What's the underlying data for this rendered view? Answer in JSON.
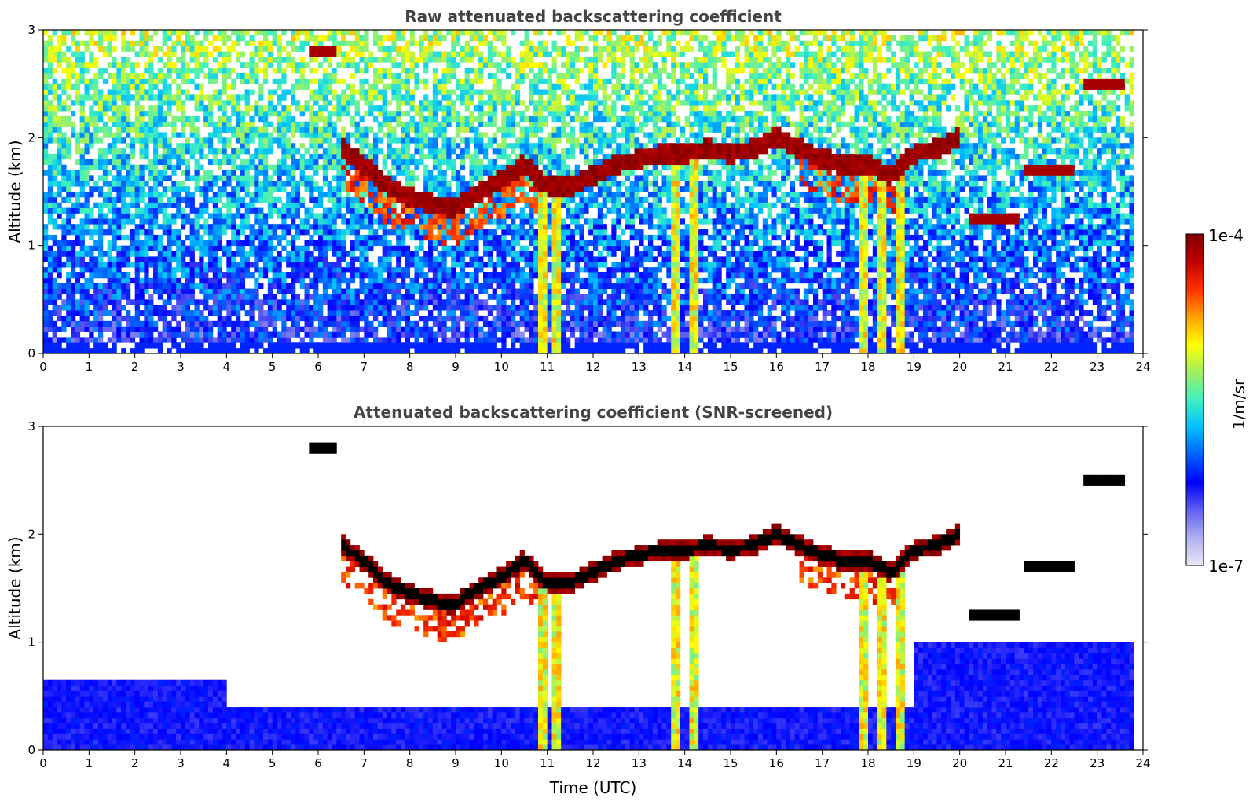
{
  "chart_data": [
    {
      "type": "heatmap",
      "title": "Raw attenuated backscattering coefficient",
      "xlabel": "",
      "ylabel": "Altitude (km)",
      "xlim": [
        0,
        24
      ],
      "ylim": [
        0,
        3
      ],
      "x_ticks": [
        "0",
        "1",
        "2",
        "3",
        "4",
        "5",
        "6",
        "7",
        "8",
        "9",
        "10",
        "11",
        "12",
        "13",
        "14",
        "15",
        "16",
        "17",
        "18",
        "19",
        "20",
        "21",
        "22",
        "23",
        "24"
      ],
      "y_ticks": [
        "0",
        "1",
        "2",
        "3"
      ],
      "screened": false,
      "cloud_layer": {
        "time": [
          6.5,
          7.0,
          7.5,
          8.0,
          8.5,
          9.0,
          9.5,
          10.0,
          10.5,
          11.0,
          11.5,
          12.0,
          12.5,
          13.0,
          13.5,
          14.0,
          14.5,
          15.0,
          15.5,
          16.0,
          16.5,
          17.0,
          17.5,
          18.0,
          18.5,
          19.0,
          19.5,
          20.0
        ],
        "altitude_km": [
          1.9,
          1.75,
          1.55,
          1.45,
          1.38,
          1.35,
          1.5,
          1.6,
          1.75,
          1.55,
          1.55,
          1.65,
          1.75,
          1.8,
          1.85,
          1.85,
          1.9,
          1.85,
          1.9,
          2.0,
          1.9,
          1.8,
          1.75,
          1.75,
          1.65,
          1.85,
          1.9,
          2.0
        ]
      },
      "precipitation_shafts_utc": [
        10.9,
        11.2,
        13.8,
        14.2,
        17.9,
        18.3,
        18.7
      ],
      "upper_cloud_patches": [
        {
          "time": [
            5.8,
            6.4
          ],
          "altitude_km": 2.8
        },
        {
          "time": [
            20.2,
            21.3
          ],
          "altitude_km": 1.25
        },
        {
          "time": [
            21.4,
            22.5
          ],
          "altitude_km": 1.7
        },
        {
          "time": [
            22.7,
            23.6
          ],
          "altitude_km": 2.5
        }
      ]
    },
    {
      "type": "heatmap",
      "title": "Attenuated backscattering coefficient (SNR-screened)",
      "xlabel": "Time (UTC)",
      "ylabel": "Altitude (km)",
      "xlim": [
        0,
        24
      ],
      "ylim": [
        0,
        3
      ],
      "x_ticks": [
        "0",
        "1",
        "2",
        "3",
        "4",
        "5",
        "6",
        "7",
        "8",
        "9",
        "10",
        "11",
        "12",
        "13",
        "14",
        "15",
        "16",
        "17",
        "18",
        "19",
        "20",
        "21",
        "22",
        "23",
        "24"
      ],
      "y_ticks": [
        "0",
        "1",
        "2",
        "3"
      ],
      "screened": true
    }
  ],
  "colorbar": {
    "label": "1/m/sr",
    "max_label": "1e-4",
    "min_label": "1e-7",
    "colors": [
      "#e8e8f8",
      "#b0b0f0",
      "#6060f0",
      "#0000ff",
      "#0060ff",
      "#00c0ff",
      "#40f0c0",
      "#a0f060",
      "#ffff00",
      "#ffa000",
      "#ff3000",
      "#c00000",
      "#800000"
    ]
  }
}
